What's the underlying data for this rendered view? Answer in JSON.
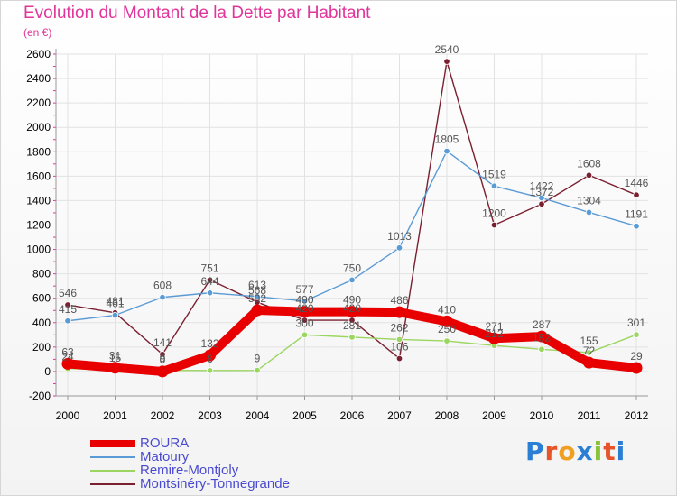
{
  "title": "Evolution du Montant de la Dette par Habitant",
  "subtitle": "(en €)",
  "logo": {
    "text": "Proxiti",
    "colors": [
      "#2a7fd4",
      "#e8542a",
      "#f0a020",
      "#2a7fd4",
      "#8ac23a",
      "#e8542a",
      "#2a7fd4"
    ]
  },
  "chart_data": {
    "type": "line",
    "title": "Evolution du Montant de la Dette par Habitant",
    "ylabel": "(en €)",
    "xlabel": "",
    "x": [
      2000,
      2001,
      2002,
      2003,
      2004,
      2005,
      2006,
      2007,
      2008,
      2009,
      2010,
      2011,
      2012
    ],
    "ylim": [
      -200,
      2600
    ],
    "yticks": [
      -200,
      0,
      200,
      400,
      600,
      800,
      1000,
      1200,
      1400,
      1600,
      1800,
      2000,
      2200,
      2400,
      2600
    ],
    "grid": true,
    "legend": "bottom-left",
    "series": [
      {
        "name": "ROURA",
        "color": "#e80000",
        "values": [
          63,
          31,
          0,
          132,
          502,
          490,
          490,
          486,
          410,
          271,
          287,
          72,
          29
        ],
        "labels": [
          "63",
          "31",
          "0",
          "132",
          "502",
          "490",
          "490",
          "486",
          "410",
          "271",
          "287",
          "72",
          "29"
        ]
      },
      {
        "name": "Matoury",
        "color": "#5b9bd5",
        "values": [
          415,
          461,
          608,
          644,
          613,
          577,
          750,
          1013,
          1805,
          1519,
          1422,
          1304,
          1191
        ],
        "labels": [
          "415",
          "461",
          "608",
          "644",
          "613",
          "577",
          "750",
          "1013",
          "1805",
          "1519",
          "1422",
          "1304",
          "1191"
        ]
      },
      {
        "name": "Remire-Montjoly",
        "color": "#9ad660",
        "values": [
          24,
          15,
          9,
          8,
          9,
          300,
          281,
          262,
          250,
          212,
          182,
          155,
          301
        ],
        "labels": [
          "24",
          "15",
          "9",
          "8",
          "9",
          "300",
          "281",
          "262",
          "250",
          "212",
          "182",
          "155",
          "301"
        ]
      },
      {
        "name": "Montsinéry-Tonnegrande",
        "color": "#7a2030",
        "values": [
          546,
          481,
          141,
          751,
          568,
          420,
          420,
          106,
          2540,
          1200,
          1372,
          1608,
          1446
        ],
        "labels": [
          "546",
          "481",
          "141",
          "751",
          "568",
          "420",
          "420",
          "106",
          "2540",
          "1200",
          "1372",
          "1608",
          "1446"
        ]
      }
    ]
  }
}
